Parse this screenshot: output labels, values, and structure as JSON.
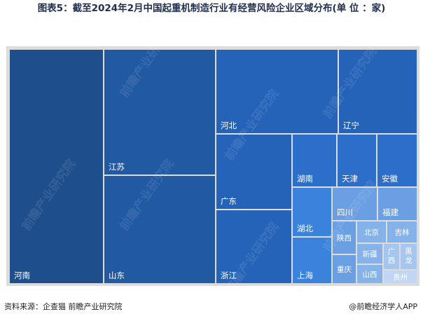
{
  "title": "图表5：截至2024年2月中国起重机制造行业有经营风险企业区域分布(单 位 ：家)",
  "source": "资料来源：企查猫 前瞻产业研究院",
  "credit": "@前瞻经济学人APP",
  "chart_data": {
    "type": "treemap",
    "title": "图表5：截至2024年2月中国起重机制造行业有经营风险企业区域分布(单 位 ：家)",
    "unit": "家",
    "items": [
      {
        "name": "河南",
        "value": 100
      },
      {
        "name": "江苏",
        "value": 44
      },
      {
        "name": "山东",
        "value": 42
      },
      {
        "name": "河北",
        "value": 22
      },
      {
        "name": "辽宁",
        "value": 14
      },
      {
        "name": "广东",
        "value": 13
      },
      {
        "name": "浙江",
        "value": 13
      },
      {
        "name": "湖南",
        "value": 6
      },
      {
        "name": "天津",
        "value": 5
      },
      {
        "name": "安徽",
        "value": 5
      },
      {
        "name": "湖北",
        "value": 6
      },
      {
        "name": "上海",
        "value": 6
      },
      {
        "name": "四川",
        "value": 4
      },
      {
        "name": "福建",
        "value": 4
      },
      {
        "name": "陕西",
        "value": 2
      },
      {
        "name": "重庆",
        "value": 2
      },
      {
        "name": "北京",
        "value": 2
      },
      {
        "name": "吉林",
        "value": 2
      },
      {
        "name": "新疆",
        "value": 1.5
      },
      {
        "name": "山西",
        "value": 1.2
      },
      {
        "name": "广西",
        "value": 0.8
      },
      {
        "name": "黑龙",
        "value": 0.8
      },
      {
        "name": "贵州",
        "value": 0.6
      }
    ],
    "colors": {
      "frame": "#dcdcdc",
      "levels": [
        "#1f4e8c",
        "#2159a3",
        "#2563b8",
        "#2c6fca",
        "#3a82dc",
        "#4f8fe0",
        "#6a9fe4",
        "#86b2ea",
        "#a6c6ef",
        "#c1d6f3"
      ]
    },
    "watermark": "前瞻产业研究院"
  }
}
